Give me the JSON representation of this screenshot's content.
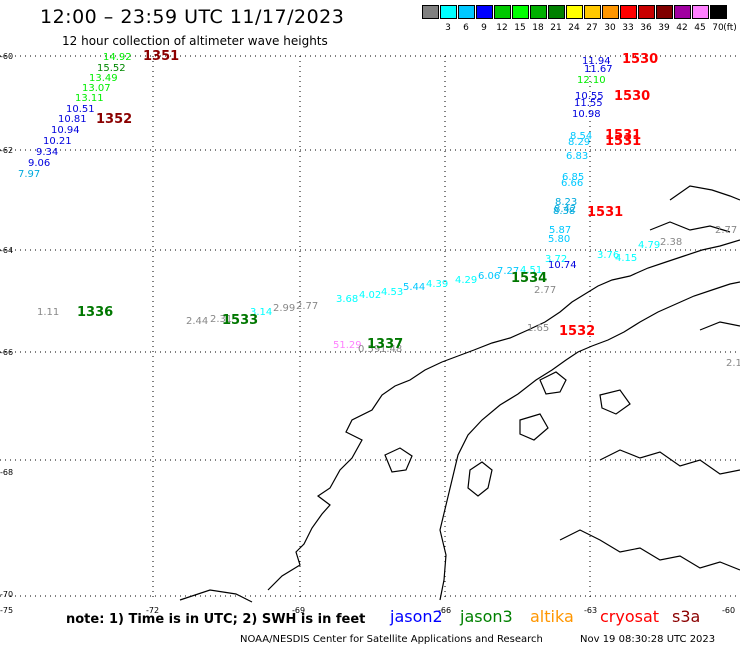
{
  "header": {
    "title": "12:00 – 23:59 UTC 11/17/2023",
    "subtitle": "12 hour collection of altimeter wave heights"
  },
  "color_scale": {
    "unit": "(ft)",
    "bins": [
      {
        "label": "",
        "color": "#808080"
      },
      {
        "label": "3",
        "color": "#00ffff"
      },
      {
        "label": "6",
        "color": "#00c8ff"
      },
      {
        "label": "9",
        "color": "#0000ff"
      },
      {
        "label": "12",
        "color": "#00c800"
      },
      {
        "label": "15",
        "color": "#00ff00"
      },
      {
        "label": "18",
        "color": "#00b000"
      },
      {
        "label": "21",
        "color": "#008000"
      },
      {
        "label": "24",
        "color": "#ffff00"
      },
      {
        "label": "27",
        "color": "#ffc800"
      },
      {
        "label": "30",
        "color": "#ff9600"
      },
      {
        "label": "33",
        "color": "#ff0000"
      },
      {
        "label": "36",
        "color": "#c80000"
      },
      {
        "label": "39",
        "color": "#800000"
      },
      {
        "label": "42",
        "color": "#a000a0"
      },
      {
        "label": "45",
        "color": "#ff80ff"
      },
      {
        "label": "70",
        "color": "#000000"
      }
    ]
  },
  "map": {
    "lat_labels": [
      "-60",
      "-62",
      "-64",
      "-66",
      "-68",
      "-70"
    ],
    "lon_labels": [
      "-75",
      "-72",
      "-69",
      "-66",
      "-63",
      "-60"
    ],
    "readings": [
      {
        "text": "14.92",
        "color": "#00ee00"
      },
      {
        "text": "15.52",
        "color": "#008800"
      },
      {
        "text": "13.49",
        "color": "#00ee00"
      },
      {
        "text": "13.07",
        "color": "#00ee00"
      },
      {
        "text": "13.11",
        "color": "#00ee00"
      },
      {
        "text": "10.51",
        "color": "#0000dd"
      },
      {
        "text": "10.81",
        "color": "#0000dd"
      },
      {
        "text": "10.94",
        "color": "#0000dd"
      },
      {
        "text": "10.21",
        "color": "#0000dd"
      },
      {
        "text": "9.34",
        "color": "#0000dd"
      },
      {
        "text": "9.06",
        "color": "#0000dd"
      },
      {
        "text": "7.97",
        "color": "#00aadd"
      },
      {
        "text": "11.94",
        "color": "#0000dd"
      },
      {
        "text": "11.67",
        "color": "#0000dd"
      },
      {
        "text": "12.10",
        "color": "#00ee00"
      },
      {
        "text": "10.55",
        "color": "#0000dd"
      },
      {
        "text": "11.55",
        "color": "#0000dd"
      },
      {
        "text": "10.98",
        "color": "#0000dd"
      },
      {
        "text": "8.54",
        "color": "#00c8ff"
      },
      {
        "text": "8.29",
        "color": "#00c8ff"
      },
      {
        "text": "6.83",
        "color": "#00c8ff"
      },
      {
        "text": "6.85",
        "color": "#00c8ff"
      },
      {
        "text": "6.66",
        "color": "#00c8ff"
      },
      {
        "text": "8.23",
        "color": "#00aadd"
      },
      {
        "text": "8.42",
        "color": "#00aadd"
      },
      {
        "text": "8.38",
        "color": "#00aadd"
      },
      {
        "text": "5.87",
        "color": "#00c8ff"
      },
      {
        "text": "5.80",
        "color": "#00c8ff"
      },
      {
        "text": "3.76",
        "color": "#00ffff"
      },
      {
        "text": "4.79",
        "color": "#00ffff"
      },
      {
        "text": "2.38",
        "color": "#888888"
      },
      {
        "text": "2.77",
        "color": "#888888"
      },
      {
        "text": "2.77",
        "color": "#888888"
      },
      {
        "text": "4.15",
        "color": "#00ffff"
      },
      {
        "text": "3.72",
        "color": "#00ffff"
      },
      {
        "text": "10.74",
        "color": "#0000dd"
      },
      {
        "text": "6.06",
        "color": "#00c8ff"
      },
      {
        "text": "7.27",
        "color": "#00c8ff"
      },
      {
        "text": "4.51",
        "color": "#00ffff"
      },
      {
        "text": "4.29",
        "color": "#00ffff"
      },
      {
        "text": "4.39",
        "color": "#00ffff"
      },
      {
        "text": "5.44",
        "color": "#00c8ff"
      },
      {
        "text": "4.53",
        "color": "#00ffff"
      },
      {
        "text": "4.02",
        "color": "#00ffff"
      },
      {
        "text": "3.68",
        "color": "#00ffff"
      },
      {
        "text": "2.77",
        "color": "#888888"
      },
      {
        "text": "2.99",
        "color": "#888888"
      },
      {
        "text": "3.14",
        "color": "#00ffff"
      },
      {
        "text": "2.31",
        "color": "#888888"
      },
      {
        "text": "2.44",
        "color": "#888888"
      },
      {
        "text": "1.11",
        "color": "#888888"
      },
      {
        "text": "51.29",
        "color": "#ff80ff"
      },
      {
        "text": "0.59",
        "color": "#888888"
      },
      {
        "text": "1.48",
        "color": "#888888"
      },
      {
        "text": "1.65",
        "color": "#888888"
      },
      {
        "text": "2.1",
        "color": "#888888"
      },
      {
        "text": "0.5",
        "color": "#888888"
      }
    ],
    "pass_times": [
      {
        "text": "1351",
        "color": "#8b0000"
      },
      {
        "text": "1352",
        "color": "#8b0000"
      },
      {
        "text": "1336",
        "color": "#007700"
      },
      {
        "text": "1533",
        "color": "#007700"
      },
      {
        "text": "1337",
        "color": "#007700"
      },
      {
        "text": "1534",
        "color": "#007700"
      },
      {
        "text": "1530",
        "color": "#ff0000"
      },
      {
        "text": "1530",
        "color": "#ff0000"
      },
      {
        "text": "1531",
        "color": "#ff0000"
      },
      {
        "text": "1531",
        "color": "#ff0000"
      },
      {
        "text": "1531",
        "color": "#ff0000"
      },
      {
        "text": "1532",
        "color": "#ff0000"
      }
    ]
  },
  "footer": {
    "note": "note: 1) Time is in UTC; 2) SWH is in feet",
    "missions": [
      {
        "name": "jason2",
        "color": "#0000ff"
      },
      {
        "name": "jason3",
        "color": "#008000"
      },
      {
        "name": "altika",
        "color": "#ff9600"
      },
      {
        "name": "cryosat",
        "color": "#ff0000"
      },
      {
        "name": "s3a",
        "color": "#8b0000"
      }
    ],
    "credit": "NOAA/NESDIS Center for Satellite Applications and Research",
    "generated": "Nov 19 08:30:28 UTC 2023"
  }
}
